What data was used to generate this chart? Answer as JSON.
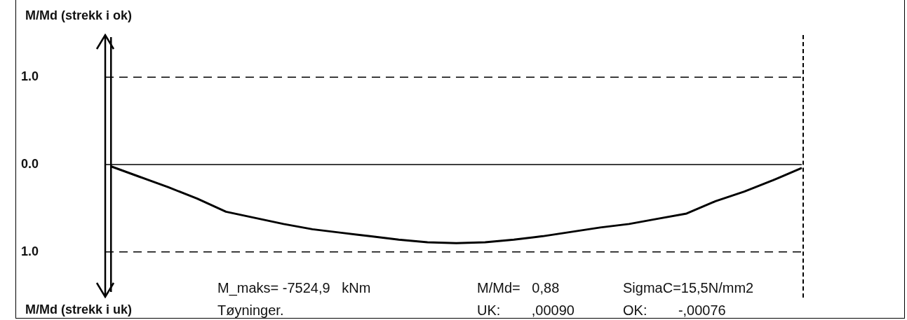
{
  "chart_data": {
    "type": "line",
    "ylabel": "M/Md (strekk i ok)",
    "categories": [
      null,
      null,
      null,
      null,
      null,
      null,
      null,
      null,
      null,
      null,
      null,
      null,
      null,
      null,
      null,
      null,
      null,
      null,
      null,
      null,
      null,
      null,
      null,
      null,
      null
    ],
    "series": [
      {
        "color": "#000000",
        "values": [
          -0.02,
          -0.14,
          -0.26,
          -0.39,
          -0.54,
          -0.61,
          -0.68,
          -0.74,
          -0.78,
          -0.82,
          -0.86,
          -0.89,
          -0.9,
          -0.89,
          -0.86,
          -0.82,
          -0.77,
          -0.72,
          -0.68,
          -0.62,
          -0.56,
          -0.42,
          -0.31,
          -0.18,
          -0.04
        ]
      }
    ],
    "ylim": [
      -1.45,
      1.45
    ],
    "yticks": [
      {
        "value": 1,
        "label": "1.0"
      },
      {
        "value": 0,
        "label": "0.0"
      },
      {
        "value": -1,
        "label": "1.0"
      }
    ],
    "tick_labels": "y",
    "grid": false,
    "legend": false,
    "marker": "none",
    "line_style": "solid",
    "ref_lines": [
      {
        "axis": "y",
        "value": 1,
        "line_style": "dashed",
        "color": "#000000"
      },
      {
        "axis": "y",
        "value": 0,
        "line_style": "solid",
        "color": "#000000"
      },
      {
        "axis": "y",
        "value": -1,
        "line_style": "dashed",
        "color": "#000000"
      }
    ],
    "annotations": [
      "M/Md (strekk i uk)",
      "M_maks= -7524,9   kNm",
      "M/Md=   0,88",
      "SigmaC=15,5N/mm2",
      "Tøyninger.",
      "UK:        ,00090",
      "OK:        -,00076"
    ]
  }
}
